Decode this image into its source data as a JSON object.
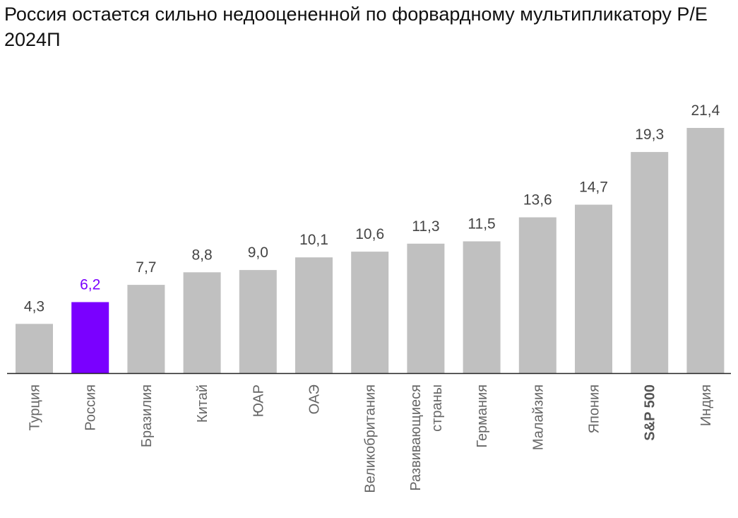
{
  "chart_data": {
    "type": "bar",
    "title": "Россия остается сильно недооцененной по форвардному мультипликатору P/E 2024П",
    "categories": [
      "Турция",
      "Россия",
      "Бразилия",
      "Китай",
      "ЮАР",
      "ОАЭ",
      "Великобритания",
      "Развивающиеся страны",
      "Германия",
      "Малайзия",
      "Япония",
      "S&P 500",
      "Индия"
    ],
    "category_lines": [
      [
        "Турция"
      ],
      [
        "Россия"
      ],
      [
        "Бразилия"
      ],
      [
        "Китай"
      ],
      [
        "ЮАР"
      ],
      [
        "ОАЭ"
      ],
      [
        "Великобритания"
      ],
      [
        "Развивающиеся",
        "страны"
      ],
      [
        "Германия"
      ],
      [
        "Малайзия"
      ],
      [
        "Япония"
      ],
      [
        "S&P 500"
      ],
      [
        "Индия"
      ]
    ],
    "values": [
      4.3,
      6.2,
      7.7,
      8.8,
      9.0,
      10.1,
      10.6,
      11.3,
      11.5,
      13.6,
      14.7,
      19.3,
      21.4
    ],
    "value_labels": [
      "4,3",
      "6,2",
      "7,7",
      "8,8",
      "9,0",
      "10,1",
      "10,6",
      "11,3",
      "11,5",
      "13,6",
      "14,7",
      "19,3",
      "21,4"
    ],
    "highlight_index": 1,
    "bold_label_index": 11,
    "colors": {
      "bar": "#c0c0c0",
      "highlight": "#7a00ff",
      "label": "#444444",
      "axis": "#222222"
    },
    "xlabel": "",
    "ylabel": "",
    "ylim": [
      0,
      21.4
    ],
    "grid": false
  }
}
